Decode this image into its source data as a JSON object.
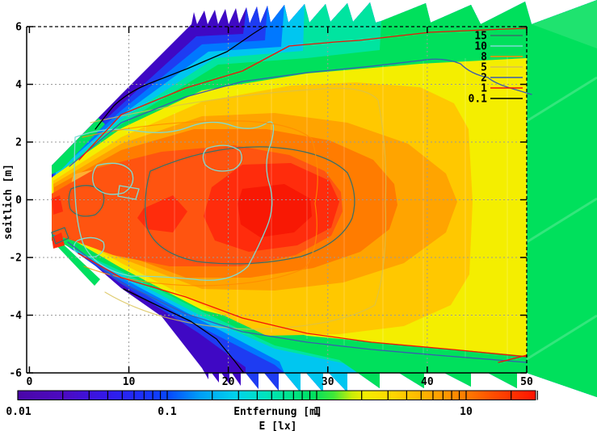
{
  "figure": {
    "kind": "gnuplot pm3d beam illuminance map"
  },
  "axes": {
    "xlabel": "Entfernung [m]",
    "ylabel": "seitlich [m]",
    "x_ticks": [
      "0",
      "10",
      "20",
      "30",
      "40",
      "50"
    ],
    "x_tick_values": [
      0,
      10,
      20,
      30,
      40,
      50
    ],
    "y_ticks": [
      "6",
      "4",
      "2",
      "0",
      "-2",
      "-4",
      "-6"
    ],
    "y_tick_values": [
      6,
      4,
      2,
      0,
      -2,
      -4,
      -6
    ]
  },
  "legend": {
    "entries": [
      {
        "label": "15",
        "color": "#3a7068"
      },
      {
        "label": "10",
        "color": "#7cdcd4"
      },
      {
        "label": "8",
        "color": "#ff8c00"
      },
      {
        "label": "5",
        "color": "#d8c050"
      },
      {
        "label": "2",
        "color": "#3b5bb0"
      },
      {
        "label": "1",
        "color": "#f51208"
      },
      {
        "label": "0.1",
        "color": "#000000"
      }
    ]
  },
  "colorbar": {
    "label": "E [lx]",
    "scale": "log",
    "min": 0.01,
    "max": 30,
    "tick_labels": [
      "0.01",
      "0.1",
      "1",
      "10"
    ],
    "tick_values": [
      0.01,
      0.1,
      1,
      10
    ]
  },
  "chart_data": {
    "type": "heatmap",
    "subtype": "pm3d-contour-beam-pattern",
    "title": "",
    "xlabel": "Entfernung [m]",
    "ylabel": "seitlich [m]",
    "colorbar_label": "E [lx]",
    "x_range_m": [
      0,
      50
    ],
    "y_range_m": [
      -6,
      6
    ],
    "x_ticks": [
      0,
      10,
      20,
      30,
      40,
      50
    ],
    "y_ticks": [
      6,
      4,
      2,
      0,
      -2,
      -4,
      -6
    ],
    "value_scale": "log10",
    "value_range_lx": [
      0.01,
      30
    ],
    "contour_levels_lx": [
      15,
      10,
      8,
      5,
      2,
      1,
      0.1
    ],
    "colormap_stops": [
      {
        "value": 0.01,
        "color": "#4a06a8"
      },
      {
        "value": 0.05,
        "color": "#2a20ee"
      },
      {
        "value": 0.1,
        "color": "#0746ff"
      },
      {
        "value": 0.3,
        "color": "#00b4f4"
      },
      {
        "value": 0.6,
        "color": "#00e2c0"
      },
      {
        "value": 1,
        "color": "#00e060"
      },
      {
        "value": 2,
        "color": "#70ec18"
      },
      {
        "value": 3,
        "color": "#f2ee00"
      },
      {
        "value": 6,
        "color": "#ffcc00"
      },
      {
        "value": 10,
        "color": "#ff9000"
      },
      {
        "value": 20,
        "color": "#ff4c00"
      },
      {
        "value": 30,
        "color": "#ff1200"
      }
    ],
    "approx_peak": {
      "distance_m": 20,
      "lateral_m": 0,
      "illuminance_lx": 30
    },
    "beam_apex": {
      "distance_m": 2.3,
      "lateral_m": 0
    },
    "description": "Fan-shaped headlamp illuminance map built from overlapping distance slices (sawtooth wedge artifacts). Hot red/orange core (15-30 lx) near lateral 0 between ~5 m and ~30 m, decaying through yellow and green to <0.1 lx (blue/violet) at the upper-left and lower-left beam edges; ~2 lx green field continues past 50 m on the right."
  }
}
